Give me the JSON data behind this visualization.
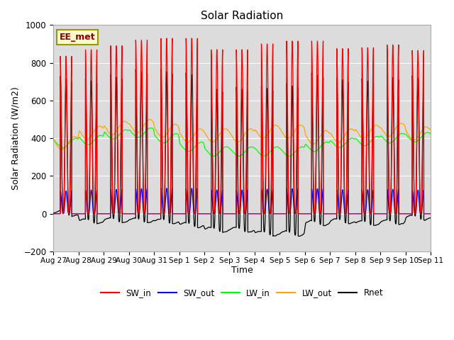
{
  "title": "Solar Radiation",
  "ylabel": "Solar Radiation (W/m2)",
  "xlabel": "Time",
  "ylim": [
    -200,
    1000
  ],
  "annotation": "EE_met",
  "bg_color": "#dcdcdc",
  "tick_labels": [
    "Aug 27",
    "Aug 28",
    "Aug 29",
    "Aug 30",
    "Aug 31",
    "Sep 1",
    "Sep 2",
    "Sep 3",
    "Sep 4",
    "Sep 5",
    "Sep 6",
    "Sep 7",
    "Sep 8",
    "Sep 9",
    "Sep 10",
    "Sep 11"
  ],
  "legend_entries": [
    {
      "label": "SW_in",
      "color": "#ff0000"
    },
    {
      "label": "SW_out",
      "color": "#0000ff"
    },
    {
      "label": "LW_in",
      "color": "#00ff00"
    },
    {
      "label": "LW_out",
      "color": "#ffa500"
    },
    {
      "label": "Rnet",
      "color": "#000000"
    }
  ],
  "sw_in_peaks": [
    835,
    870,
    890,
    920,
    930,
    930,
    870,
    870,
    900,
    915,
    915,
    875,
    880,
    895,
    865
  ],
  "sw_out_ratio": 0.145,
  "lw_in_base": [
    375,
    390,
    420,
    430,
    400,
    355,
    330,
    330,
    330,
    330,
    355,
    375,
    385,
    400,
    405
  ],
  "lw_out_base": [
    375,
    430,
    455,
    465,
    440,
    415,
    415,
    415,
    435,
    435,
    405,
    415,
    435,
    445,
    425
  ],
  "rnet_night": [
    -50,
    -60,
    -70,
    -80,
    -80,
    -60,
    -55,
    -55,
    -60,
    -60,
    -50,
    -55,
    -60,
    -65,
    -55
  ]
}
